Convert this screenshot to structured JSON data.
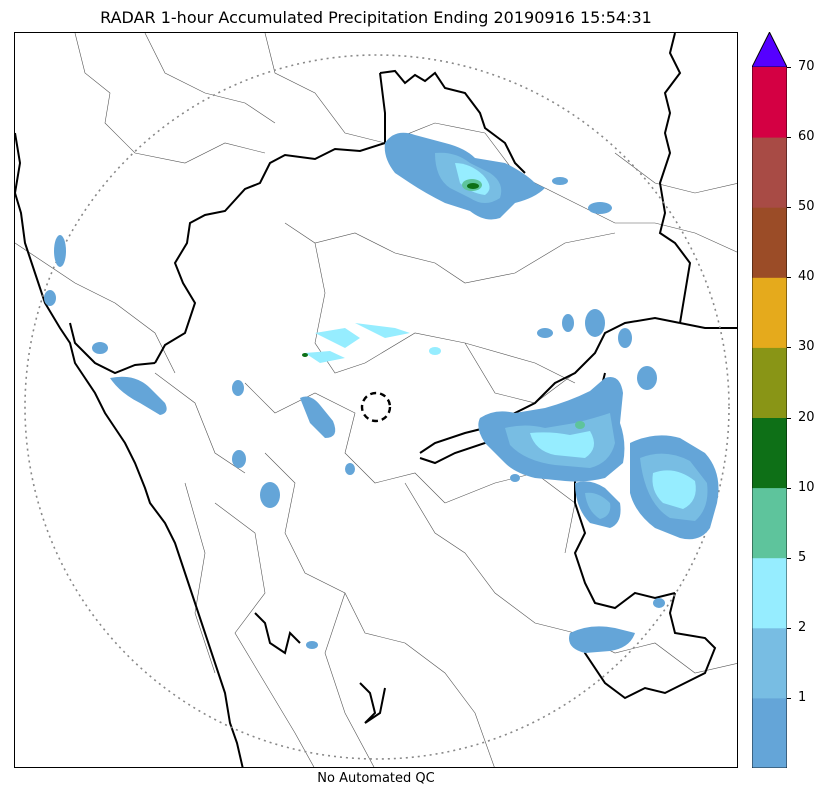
{
  "title": "RADAR 1-hour Accumulated Precipitation Ending 20190916 15:54:31",
  "footer_note": "No Automated QC",
  "colorbar": {
    "extend_max": true,
    "extend_color": "#5500ff",
    "bins": [
      {
        "color": "#64a5d8"
      },
      {
        "color": "#78bde3"
      },
      {
        "color": "#96edff"
      },
      {
        "color": "#5ec49c"
      },
      {
        "color": "#0e7017"
      },
      {
        "color": "#899516"
      },
      {
        "color": "#e5aa1c"
      },
      {
        "color": "#9b4c27"
      },
      {
        "color": "#a84b45"
      },
      {
        "color": "#d40043"
      }
    ],
    "tick_labels": [
      "1",
      "2",
      "5",
      "10",
      "20",
      "30",
      "40",
      "50",
      "60",
      "70"
    ]
  },
  "map": {
    "range_ring": "dotted",
    "radar_site_marker": "dashed-circle",
    "colors": {
      "coast": "#000000",
      "state_border": "#000000",
      "district_border": "#555555"
    }
  }
}
